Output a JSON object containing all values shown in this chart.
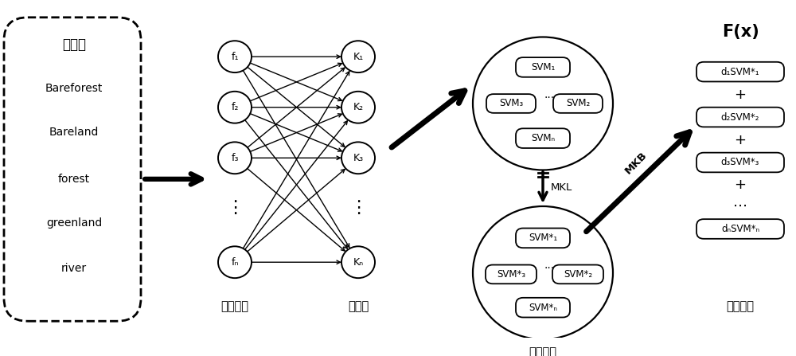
{
  "background_color": "#ffffff",
  "box1_labels": [
    "样本库",
    "Bareforest",
    "Bareland",
    "forest",
    "greenland",
    "river"
  ],
  "f_labels": [
    "f₁",
    "f₂",
    "f₃",
    "...",
    "fₙ"
  ],
  "k_labels": [
    "K₁",
    "K₂",
    "K₃",
    "...",
    "Kₙ"
  ],
  "label_feat": "特征提取",
  "label_kernel": "核函数",
  "label_weak": "弱分类器",
  "label_strong": "强分类器",
  "mkl_label": "MKL",
  "mkb_label": "MKB",
  "fx_label": "F(x)"
}
